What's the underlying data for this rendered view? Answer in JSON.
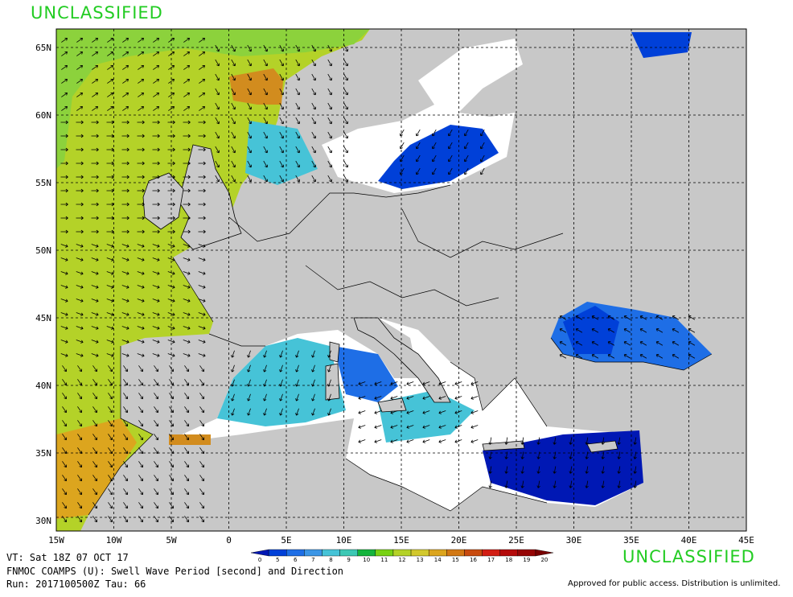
{
  "banner": {
    "top": "UNCLASSIFIED",
    "bottom": "UNCLASSIFIED"
  },
  "info": {
    "valid_time": "VT: Sat 18Z 07 OCT 17",
    "product": "FNMOC COAMPS (U): Swell Wave Period [second] and Direction",
    "run": "Run: 2017100500Z Tau: 66"
  },
  "footer": {
    "approved": "Approved for public access. Distribution is unlimited."
  },
  "map": {
    "lat_labels": [
      "65N",
      "60N",
      "55N",
      "50N",
      "45N",
      "40N",
      "35N",
      "30N"
    ],
    "lat_values": [
      65,
      60,
      55,
      50,
      45,
      40,
      35,
      30
    ],
    "lon_labels": [
      "15W",
      "10W",
      "5W",
      "0",
      "5E",
      "10E",
      "15E",
      "20E",
      "25E",
      "30E",
      "35E",
      "40E",
      "45E"
    ],
    "lon_values": [
      -15,
      -10,
      -5,
      0,
      5,
      10,
      15,
      20,
      25,
      30,
      35,
      40,
      45
    ],
    "lon_range": [
      -15,
      45
    ],
    "lat_range": [
      29,
      66
    ],
    "land_color": "#c8c8c8",
    "grid": "dashed"
  },
  "legend": {
    "labels": [
      "0",
      "5",
      "6",
      "7",
      "8",
      "9",
      "10",
      "11",
      "12",
      "13",
      "14",
      "15",
      "16",
      "17",
      "18",
      "19",
      "20"
    ],
    "colors": [
      "#0018b4",
      "#0040d8",
      "#1e6ee6",
      "#3c96e6",
      "#46c3d7",
      "#3cc8b4",
      "#14b43c",
      "#78d214",
      "#b4d228",
      "#d2c82d",
      "#dca51e",
      "#d27814",
      "#c84b0f",
      "#d21e14",
      "#b40a0a",
      "#960505",
      "#780000"
    ]
  }
}
